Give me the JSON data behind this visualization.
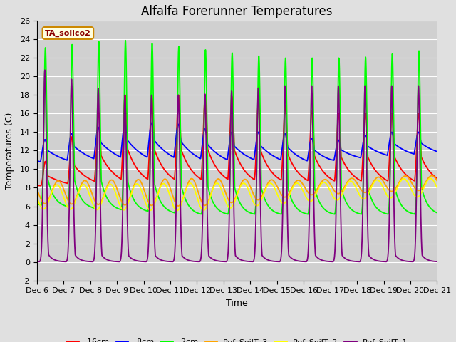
{
  "title": "Alfalfa Forerunner Temperatures",
  "xlabel": "Time",
  "ylabel": "Temperatures (C)",
  "annotation_label": "TA_soilco2",
  "ylim": [
    -2,
    26
  ],
  "xlim": [
    0,
    15
  ],
  "x_tick_labels": [
    "Dec 6",
    "Dec 7",
    "Dec 8",
    "Dec 9",
    "Dec 10",
    "Dec 11",
    "Dec 12",
    "Dec 13",
    "Dec 14",
    "Dec 15",
    "Dec 16",
    "Dec 17",
    "Dec 18",
    "Dec 19",
    "Dec 20",
    "Dec 21"
  ],
  "legend_entries": [
    "-16cm",
    "-8cm",
    "-2cm",
    "Ref_SoilT_3",
    "Ref_SoilT_2",
    "Ref_SoilT_1"
  ],
  "line_colors": [
    "red",
    "blue",
    "lime",
    "orange",
    "yellow",
    "purple"
  ],
  "background_color": "#e0e0e0",
  "plot_bg_color": "#d0d0d0",
  "title_fontsize": 12,
  "label_fontsize": 9,
  "tick_fontsize": 8
}
